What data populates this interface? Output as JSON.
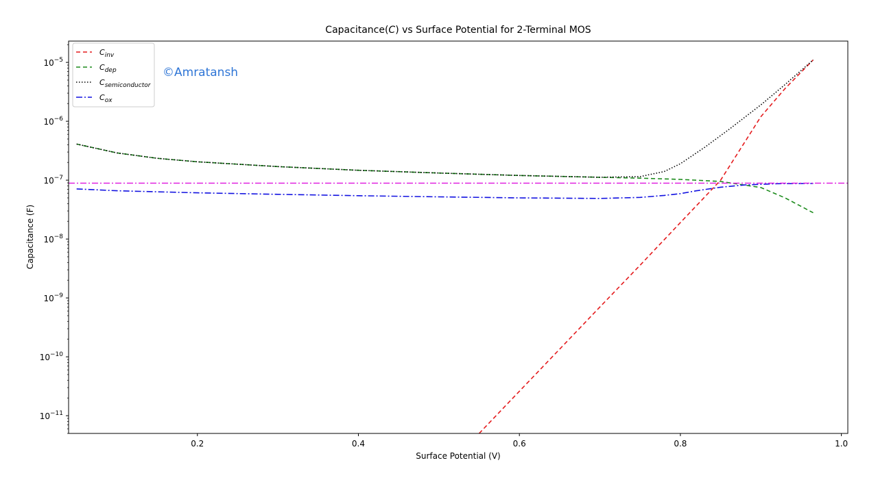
{
  "chart_data": {
    "type": "line",
    "title": "Capacitance(C) vs  Surface Potential for 2-Terminal MOS",
    "xlabel": "Surface Potential (V)",
    "ylabel": "Capacitance (F)",
    "xlim": [
      0.04,
      1.008
    ],
    "ylim": [
      5e-12,
      2.3e-05
    ],
    "yscale": "log",
    "grid": false,
    "legend_position": "top-left",
    "watermark": "©Amratansh",
    "x_ticks": [
      {
        "value": 0.2,
        "label": "0.2"
      },
      {
        "value": 0.4,
        "label": "0.4"
      },
      {
        "value": 0.6,
        "label": "0.6"
      },
      {
        "value": 0.8,
        "label": "0.8"
      },
      {
        "value": 1.0,
        "label": "1.0"
      }
    ],
    "y_ticks": [
      {
        "value": 1e-11,
        "base": "10",
        "exp": "−11"
      },
      {
        "value": 1e-10,
        "base": "10",
        "exp": "−10"
      },
      {
        "value": 1e-09,
        "base": "10",
        "exp": "−9"
      },
      {
        "value": 1e-08,
        "base": "10",
        "exp": "−8"
      },
      {
        "value": 1e-07,
        "base": "10",
        "exp": "−7"
      },
      {
        "value": 1e-06,
        "base": "10",
        "exp": "−6"
      },
      {
        "value": 1e-05,
        "base": "10",
        "exp": "−5"
      }
    ],
    "series": [
      {
        "name": "C",
        "sub": "inv",
        "color": "#e41a1c",
        "dash": "6,4",
        "x": [
          0.55,
          0.6,
          0.65,
          0.7,
          0.75,
          0.8,
          0.85,
          0.9,
          0.93,
          0.965
        ],
        "y": [
          5e-12,
          2.6e-11,
          1.35e-10,
          7e-10,
          3.6e-09,
          1.9e-08,
          1e-07,
          1.2e-06,
          3.6e-06,
          1.1e-05
        ]
      },
      {
        "name": "C",
        "sub": "dep",
        "color": "#1a8a1a",
        "dash": "6,4",
        "x": [
          0.05,
          0.1,
          0.15,
          0.2,
          0.3,
          0.4,
          0.5,
          0.6,
          0.7,
          0.75,
          0.8,
          0.85,
          0.9,
          0.93,
          0.965
        ],
        "y": [
          4.1e-07,
          2.9e-07,
          2.35e-07,
          2.05e-07,
          1.7e-07,
          1.47e-07,
          1.32e-07,
          1.2e-07,
          1.12e-07,
          1.08e-07,
          1.03e-07,
          9.5e-08,
          7.5e-08,
          5e-08,
          2.8e-08
        ]
      },
      {
        "name": "C",
        "sub": "semiconductor",
        "color": "#000000",
        "dash": "1.5,2.5",
        "x": [
          0.05,
          0.1,
          0.15,
          0.2,
          0.3,
          0.4,
          0.5,
          0.6,
          0.7,
          0.75,
          0.78,
          0.8,
          0.83,
          0.86,
          0.9,
          0.93,
          0.965
        ],
        "y": [
          4.1e-07,
          2.9e-07,
          2.35e-07,
          2.05e-07,
          1.7e-07,
          1.47e-07,
          1.32e-07,
          1.2e-07,
          1.12e-07,
          1.15e-07,
          1.4e-07,
          1.9e-07,
          3.6e-07,
          7.2e-07,
          1.9e-06,
          4.2e-06,
          1.1e-05
        ]
      },
      {
        "name": "C",
        "sub": "ox",
        "color": "#1010e0",
        "dash": "9,3,2,3",
        "x": [
          0.05,
          0.1,
          0.2,
          0.3,
          0.4,
          0.5,
          0.6,
          0.7,
          0.75,
          0.78,
          0.8,
          0.82,
          0.85,
          0.88,
          0.92,
          0.965
        ],
        "y": [
          7.1e-08,
          6.6e-08,
          6.1e-08,
          5.75e-08,
          5.45e-08,
          5.2e-08,
          5e-08,
          4.9e-08,
          5.1e-08,
          5.5e-08,
          5.9e-08,
          6.6e-08,
          7.6e-08,
          8.3e-08,
          8.7e-08,
          8.8e-08
        ]
      },
      {
        "name": "",
        "sub": "",
        "color": "#e020e0",
        "dash": "9,3,2,3",
        "x": [
          0.04,
          1.008
        ],
        "y": [
          8.9e-08,
          8.9e-08
        ],
        "legend": false
      }
    ]
  }
}
